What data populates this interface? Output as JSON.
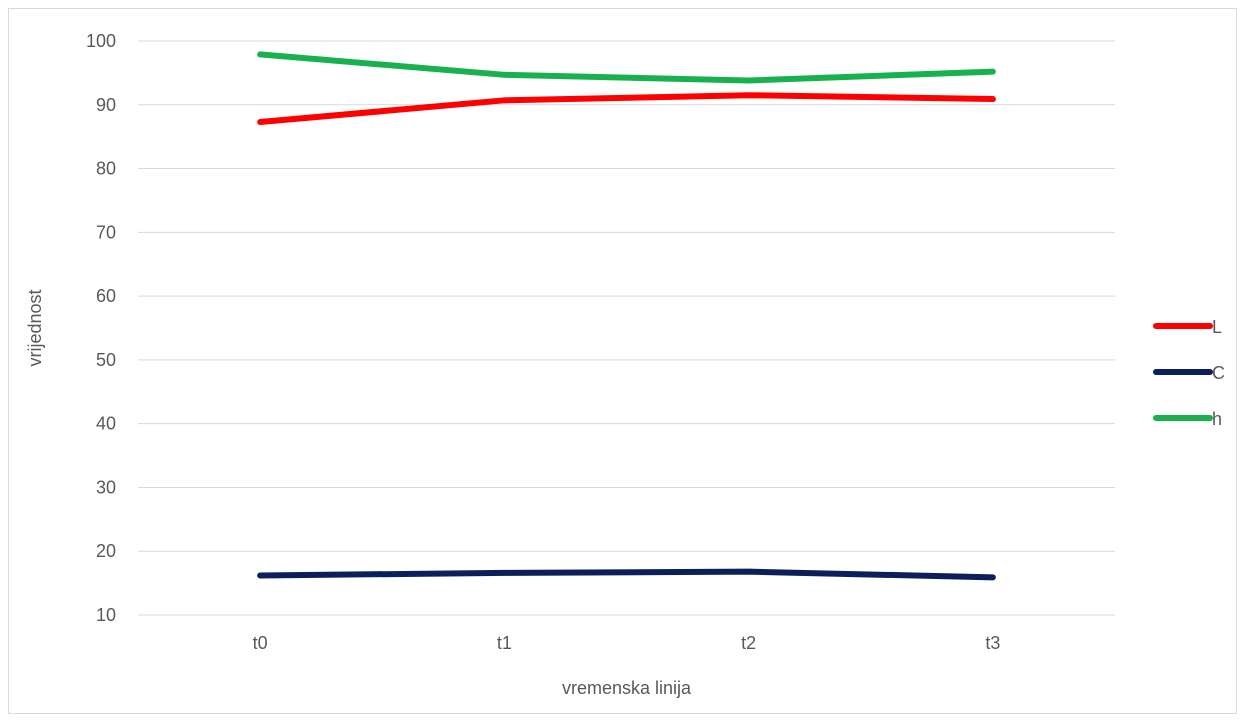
{
  "chart_data": {
    "type": "line",
    "title": "",
    "xlabel": "vremenska linija",
    "ylabel": "vrijednost",
    "categories": [
      "t0",
      "t1",
      "t2",
      "t3"
    ],
    "ylim": [
      10,
      100
    ],
    "yticks": [
      10,
      20,
      30,
      40,
      50,
      60,
      70,
      80,
      90,
      100
    ],
    "grid": true,
    "legend_position": "right",
    "series": [
      {
        "name": "L",
        "color": "#ff0000",
        "values": [
          87.3,
          90.7,
          91.5,
          90.9
        ]
      },
      {
        "name": "C",
        "color": "#0b1f5c",
        "values": [
          16.2,
          16.6,
          16.8,
          15.9
        ]
      },
      {
        "name": "h",
        "color": "#19b14f",
        "values": [
          97.9,
          94.7,
          93.8,
          95.2
        ]
      }
    ]
  }
}
